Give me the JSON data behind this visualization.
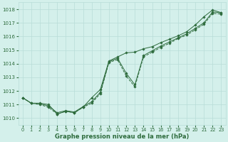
{
  "xlabel": "Graphe pression niveau de la mer (hPa)",
  "x_ticks": [
    0,
    1,
    2,
    3,
    4,
    5,
    6,
    7,
    8,
    9,
    10,
    11,
    12,
    13,
    14,
    15,
    16,
    17,
    18,
    19,
    20,
    21,
    22,
    23
  ],
  "ylim": [
    1009.5,
    1018.5
  ],
  "yticks": [
    1010,
    1011,
    1012,
    1013,
    1014,
    1015,
    1016,
    1017,
    1018
  ],
  "xlim": [
    -0.5,
    23.5
  ],
  "bg_color": "#d4f0eb",
  "grid_color": "#b8ddd8",
  "line_color": "#2d6b3c",
  "marker_color": "#2d6b3c",
  "line1_x": [
    0,
    1,
    2,
    3,
    4,
    5,
    6,
    7,
    8,
    9,
    10,
    11,
    12,
    13,
    14,
    15,
    16,
    17,
    18,
    19,
    20,
    21,
    22,
    23
  ],
  "line1_y": [
    1011.5,
    1011.1,
    1011.0,
    1010.8,
    1010.3,
    1010.5,
    1010.4,
    1010.8,
    1011.1,
    1011.8,
    1014.1,
    1014.3,
    1013.1,
    1012.3,
    1014.5,
    1014.85,
    1015.2,
    1015.5,
    1015.85,
    1016.1,
    1016.5,
    1016.9,
    1017.7,
    1017.65
  ],
  "line2_x": [
    0,
    1,
    2,
    3,
    4,
    5,
    6,
    7,
    8,
    9,
    10,
    11,
    12,
    13,
    14,
    15,
    16,
    17,
    18,
    19,
    20,
    21,
    22,
    23
  ],
  "line2_y": [
    1011.5,
    1011.1,
    1011.05,
    1010.9,
    1010.4,
    1010.55,
    1010.45,
    1010.85,
    1011.2,
    1011.9,
    1014.15,
    1014.4,
    1013.3,
    1012.45,
    1014.6,
    1014.95,
    1015.3,
    1015.6,
    1015.9,
    1016.2,
    1016.6,
    1017.0,
    1017.8,
    1017.75
  ],
  "line3_x": [
    0,
    1,
    2,
    3,
    4,
    5,
    6,
    7,
    8,
    9,
    10,
    11,
    12,
    13,
    14,
    15,
    16,
    17,
    18,
    19,
    20,
    21,
    22,
    23
  ],
  "line3_y": [
    1011.5,
    1011.1,
    1011.1,
    1011.0,
    1010.3,
    1010.5,
    1010.4,
    1010.8,
    1011.5,
    1012.1,
    1014.2,
    1014.5,
    1014.8,
    1014.85,
    1015.1,
    1015.25,
    1015.55,
    1015.8,
    1016.05,
    1016.35,
    1016.85,
    1017.45,
    1017.95,
    1017.75
  ]
}
